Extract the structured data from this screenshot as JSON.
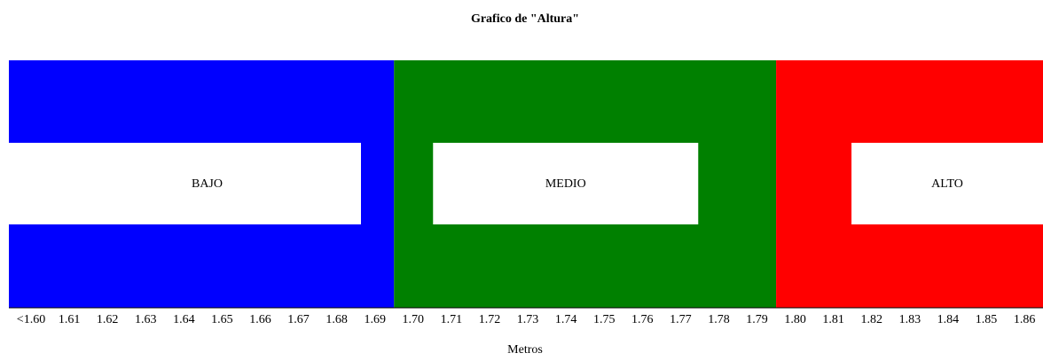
{
  "chart_data": {
    "type": "band",
    "title": "Grafico de \"Altura\"",
    "xlabel": "Metros",
    "categories": [
      "<1.60",
      "1.61",
      "1.62",
      "1.63",
      "1.64",
      "1.65",
      "1.66",
      "1.67",
      "1.68",
      "1.69",
      "1.70",
      "1.71",
      "1.72",
      "1.73",
      "1.74",
      "1.75",
      "1.76",
      "1.77",
      "1.78",
      "1.79",
      "1.80",
      "1.81",
      "1.82",
      "1.83",
      "1.84",
      "1.85",
      "1.86"
    ],
    "bands": [
      {
        "name": "BAJO",
        "color": "#0000ff",
        "count": 10
      },
      {
        "name": "MEDIO",
        "color": "#008000",
        "count": 10
      },
      {
        "name": "ALTO",
        "color": "#ff0000",
        "count": 7
      }
    ]
  }
}
